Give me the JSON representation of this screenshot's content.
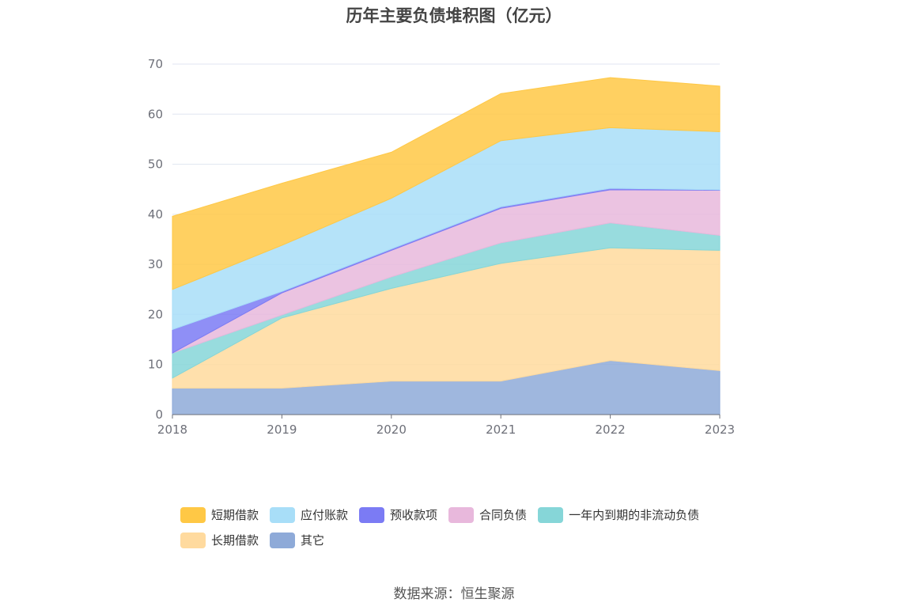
{
  "source_label": "数据来源：恒生聚源",
  "chart_data": {
    "type": "area",
    "stacked": true,
    "title": "历年主要负债堆积图（亿元）",
    "xlabel": "",
    "ylabel": "",
    "x": [
      "2018",
      "2019",
      "2020",
      "2021",
      "2022",
      "2023"
    ],
    "ylim": [
      0,
      70
    ],
    "yticks": [
      0,
      10,
      20,
      30,
      40,
      50,
      60,
      70
    ],
    "grid": true,
    "legend_position": "bottom",
    "series_stack_order": [
      "其它",
      "长期借款",
      "一年内到期的非流动负债",
      "合同负债",
      "预收款项",
      "应付账款",
      "短期借款"
    ],
    "series": [
      {
        "name": "短期借款",
        "color": "#FFC845",
        "values": [
          14.6,
          12.4,
          9.2,
          9.4,
          10.0,
          9.1
        ]
      },
      {
        "name": "应付账款",
        "color": "#A8DEF8",
        "values": [
          8.0,
          9.2,
          10.1,
          13.2,
          12.1,
          11.6
        ]
      },
      {
        "name": "预收款项",
        "color": "#7B7BF4",
        "values": [
          4.7,
          0.3,
          0.3,
          0.3,
          0.3,
          0.1
        ]
      },
      {
        "name": "合同负债",
        "color": "#E8B8DC",
        "values": [
          0,
          4.4,
          5.3,
          6.9,
          6.6,
          9.0
        ]
      },
      {
        "name": "一年内到期的非流动负债",
        "color": "#86D6D8",
        "values": [
          5.0,
          0.6,
          2.3,
          4.1,
          5.0,
          3.0
        ]
      },
      {
        "name": "长期借款",
        "color": "#FFDA9E",
        "values": [
          2.0,
          14.0,
          18.5,
          23.5,
          22.5,
          24.0
        ]
      },
      {
        "name": "其它",
        "color": "#8EAAD8",
        "values": [
          5.3,
          5.3,
          6.7,
          6.7,
          10.8,
          8.8
        ]
      }
    ]
  }
}
